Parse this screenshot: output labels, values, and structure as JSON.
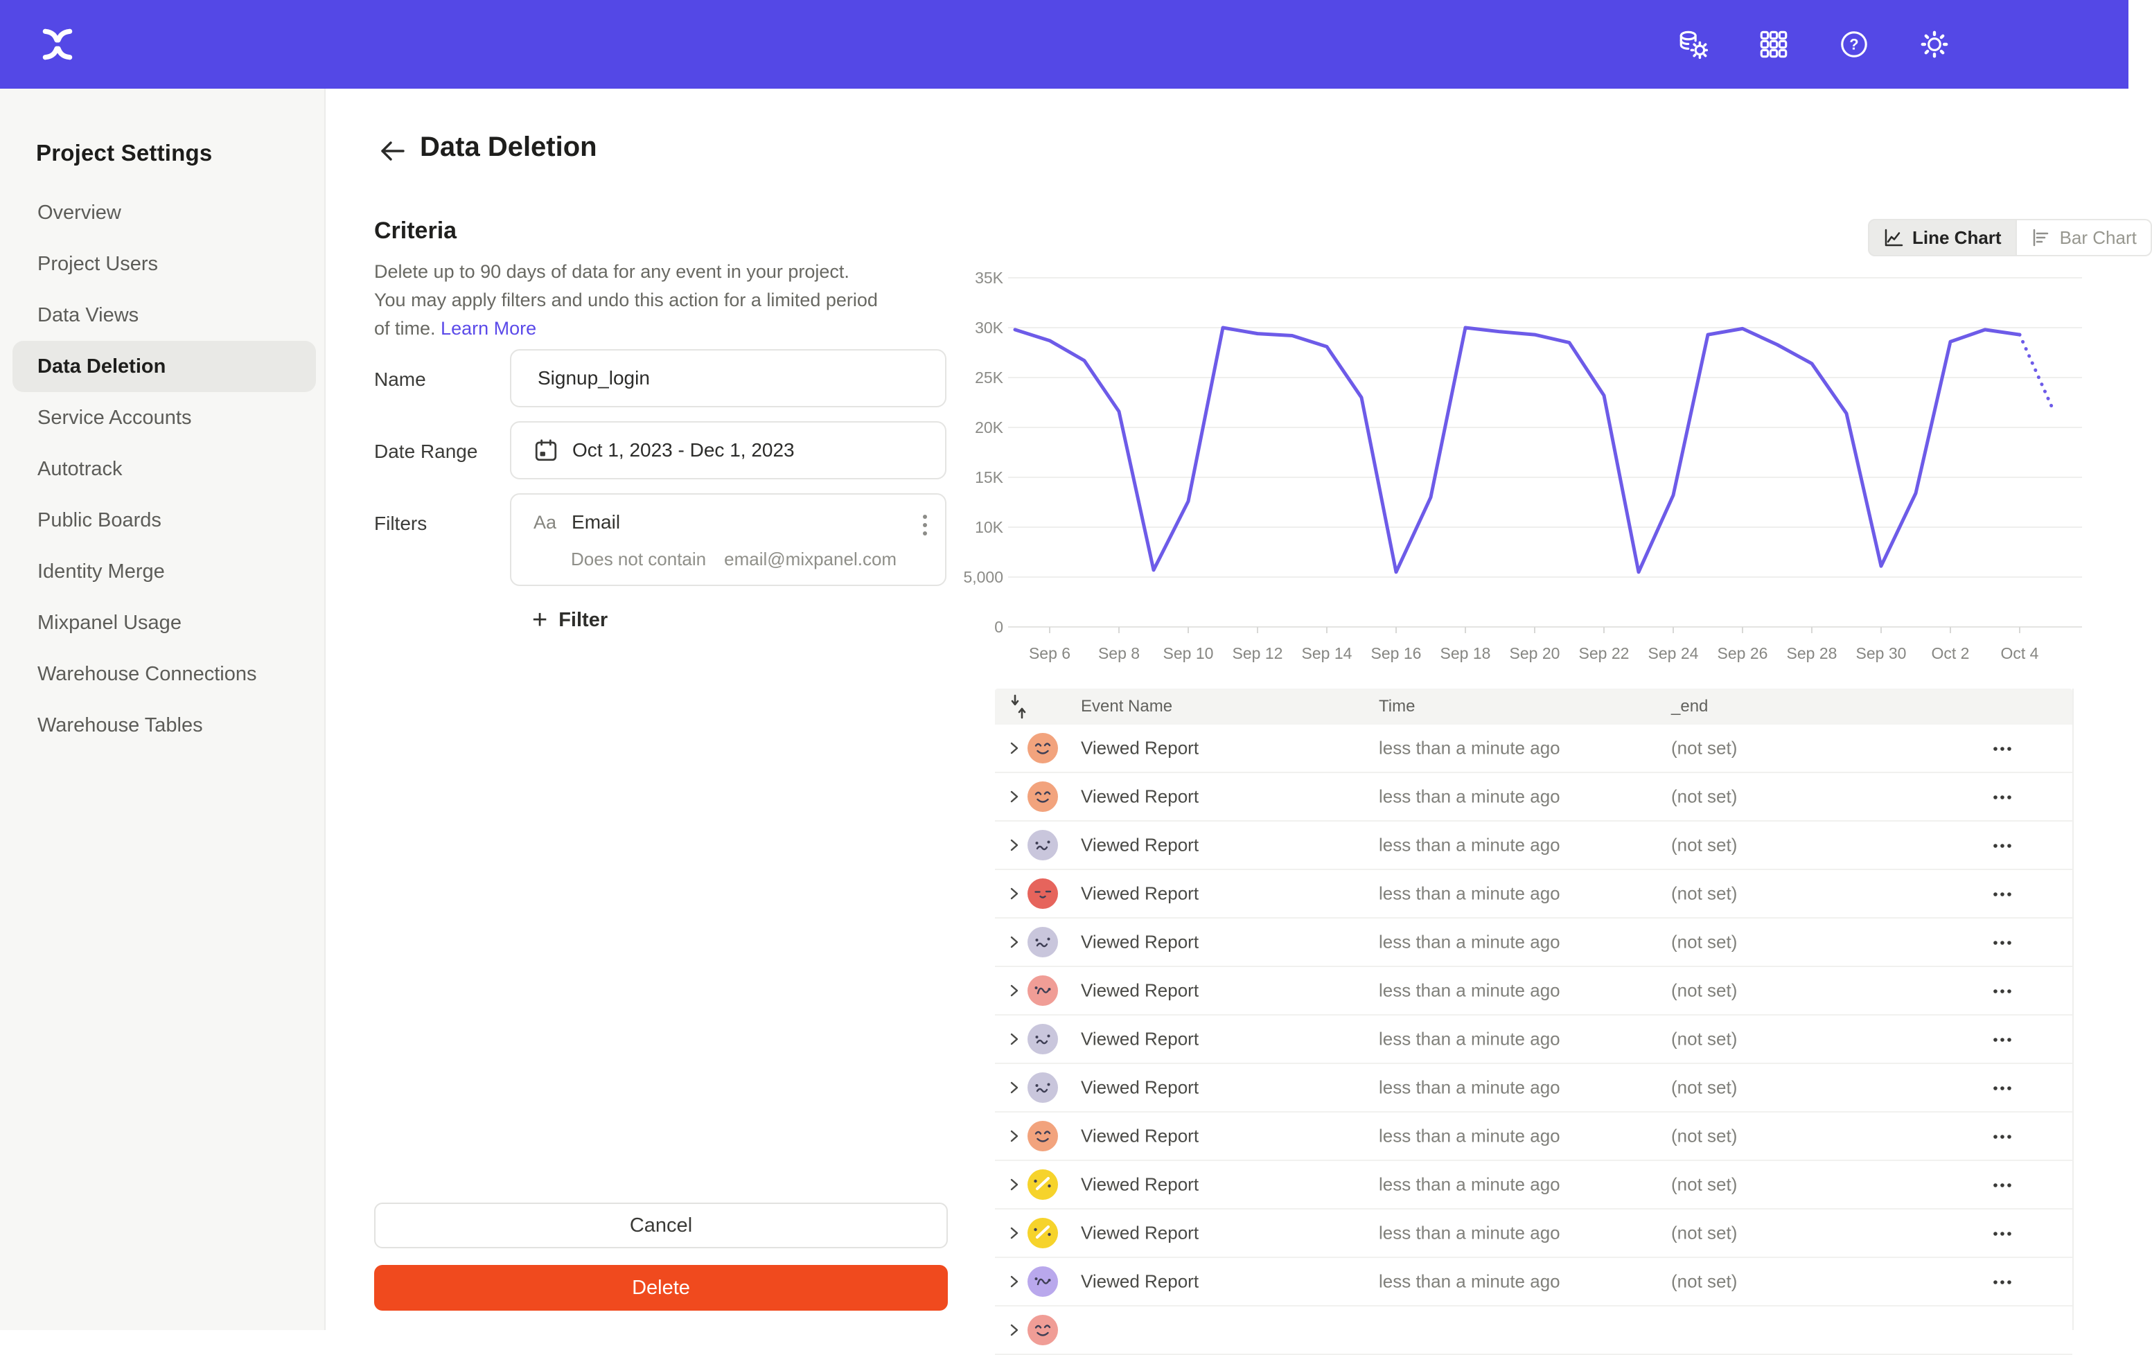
{
  "colors": {
    "nav_bar": "#5448E6",
    "link_accent": "#5B4AE9",
    "delete_button": "#F04A1E",
    "chart_line": "#6D5BE8",
    "sidebar_active_bg": "#E9E9E6"
  },
  "nav": {
    "icons": [
      "data-settings-icon",
      "apps-grid-icon",
      "help-icon",
      "settings-gear-icon"
    ]
  },
  "sidebar": {
    "title": "Project Settings",
    "items": [
      {
        "label": "Overview",
        "active": false
      },
      {
        "label": "Project Users",
        "active": false
      },
      {
        "label": "Data Views",
        "active": false
      },
      {
        "label": "Data Deletion",
        "active": true
      },
      {
        "label": "Service Accounts",
        "active": false
      },
      {
        "label": "Autotrack",
        "active": false
      },
      {
        "label": "Public Boards",
        "active": false
      },
      {
        "label": "Identity Merge",
        "active": false
      },
      {
        "label": "Mixpanel Usage",
        "active": false
      },
      {
        "label": "Warehouse Connections",
        "active": false
      },
      {
        "label": "Warehouse Tables",
        "active": false
      }
    ]
  },
  "page": {
    "title": "Data Deletion"
  },
  "criteria": {
    "heading": "Criteria",
    "description": "Delete up to 90 days of data for any event in your project. You may apply filters and undo this action for a limited period of time.",
    "link_label": "Learn More"
  },
  "form": {
    "name_label": "Name",
    "name_value": "Signup_login",
    "date_label": "Date Range",
    "date_value": "Oct 1, 2023 - Dec 1, 2023",
    "filters_label": "Filters",
    "filter": {
      "type_icon": "Aa",
      "property": "Email",
      "operator": "Does not contain",
      "value": "email@mixpanel.com"
    },
    "add_filter_label": "Filter"
  },
  "actions": {
    "cancel_label": "Cancel",
    "delete_label": "Delete"
  },
  "chart_toggle": {
    "line_label": "Line Chart",
    "bar_label": "Bar Chart",
    "selected": "line"
  },
  "chart_data": {
    "type": "line",
    "title": "",
    "xlabel": "",
    "ylabel": "",
    "x": [
      "Sep 5",
      "Sep 6",
      "Sep 7",
      "Sep 8",
      "Sep 9",
      "Sep 10",
      "Sep 11",
      "Sep 12",
      "Sep 13",
      "Sep 14",
      "Sep 15",
      "Sep 16",
      "Sep 17",
      "Sep 18",
      "Sep 19",
      "Sep 20",
      "Sep 21",
      "Sep 22",
      "Sep 23",
      "Sep 24",
      "Sep 25",
      "Sep 26",
      "Sep 27",
      "Sep 28",
      "Sep 29",
      "Sep 30",
      "Oct 1",
      "Oct 2",
      "Oct 3",
      "Oct 4",
      "Oct 5"
    ],
    "values": [
      29800,
      28700,
      26700,
      21600,
      5700,
      12600,
      30000,
      29400,
      29200,
      28100,
      23000,
      5500,
      13000,
      30000,
      29600,
      29300,
      28500,
      23200,
      5500,
      13200,
      29300,
      29900,
      28300,
      26400,
      21400,
      6100,
      13400,
      28600,
      29800,
      29300,
      21500
    ],
    "projected_from_index": 29,
    "ylim": [
      0,
      35000
    ],
    "ytick_labels": [
      "0",
      "5,000",
      "10K",
      "15K",
      "20K",
      "25K",
      "30K",
      "35K"
    ],
    "xtick_labels": [
      "Sep 6",
      "Sep 8",
      "Sep 10",
      "Sep 12",
      "Sep 14",
      "Sep 16",
      "Sep 18",
      "Sep 20",
      "Sep 22",
      "Sep 24",
      "Sep 26",
      "Sep 28",
      "Sep 30",
      "Oct 2",
      "Oct 4"
    ],
    "grid": true,
    "legend": "none",
    "line_color": "#6D5BE8"
  },
  "table": {
    "headers": [
      "Event Name",
      "Time",
      "_end"
    ],
    "rows": [
      {
        "event": "Viewed Report",
        "time": "less than a minute ago",
        "end": "(not set)",
        "avatar_color": "#F2A37D",
        "avatar_variant": "happy"
      },
      {
        "event": "Viewed Report",
        "time": "less than a minute ago",
        "end": "(not set)",
        "avatar_color": "#F2A37D",
        "avatar_variant": "happy"
      },
      {
        "event": "Viewed Report",
        "time": "less than a minute ago",
        "end": "(not set)",
        "avatar_color": "#C9C6DC",
        "avatar_variant": "squiggle"
      },
      {
        "event": "Viewed Report",
        "time": "less than a minute ago",
        "end": "(not set)",
        "avatar_color": "#E6645C",
        "avatar_variant": "dots"
      },
      {
        "event": "Viewed Report",
        "time": "less than a minute ago",
        "end": "(not set)",
        "avatar_color": "#C9C6DC",
        "avatar_variant": "squiggle"
      },
      {
        "event": "Viewed Report",
        "time": "less than a minute ago",
        "end": "(not set)",
        "avatar_color": "#F09D96",
        "avatar_variant": "loop"
      },
      {
        "event": "Viewed Report",
        "time": "less than a minute ago",
        "end": "(not set)",
        "avatar_color": "#C9C6DC",
        "avatar_variant": "squiggle"
      },
      {
        "event": "Viewed Report",
        "time": "less than a minute ago",
        "end": "(not set)",
        "avatar_color": "#C9C6DC",
        "avatar_variant": "squiggle"
      },
      {
        "event": "Viewed Report",
        "time": "less than a minute ago",
        "end": "(not set)",
        "avatar_color": "#F2A37D",
        "avatar_variant": "happy"
      },
      {
        "event": "Viewed Report",
        "time": "less than a minute ago",
        "end": "(not set)",
        "avatar_color": "#F6D32B",
        "avatar_variant": "wink"
      },
      {
        "event": "Viewed Report",
        "time": "less than a minute ago",
        "end": "(not set)",
        "avatar_color": "#F6D32B",
        "avatar_variant": "wink"
      },
      {
        "event": "Viewed Report",
        "time": "less than a minute ago",
        "end": "(not set)",
        "avatar_color": "#B9A8EC",
        "avatar_variant": "loop"
      },
      {
        "event": "",
        "time": "",
        "end": "",
        "avatar_color": "#F09D96",
        "avatar_variant": "happy",
        "partial": true
      }
    ]
  }
}
